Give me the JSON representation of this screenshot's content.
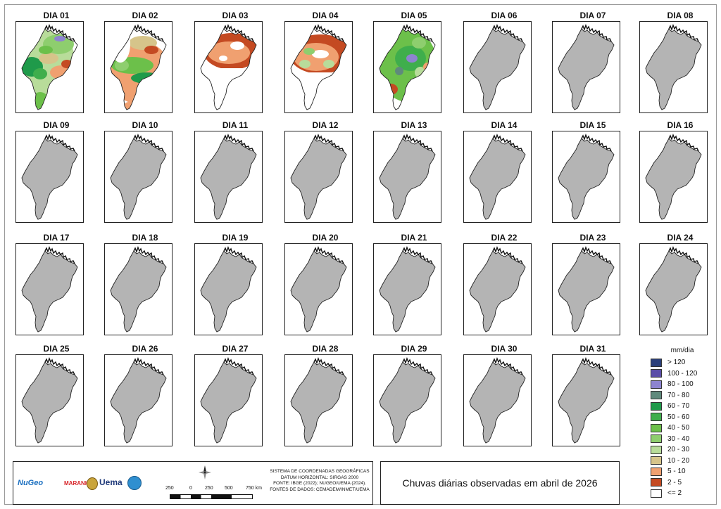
{
  "title": "Chuvas diárias observadas em abril de 2026",
  "days": [
    {
      "label": "DIA 01",
      "status": "data"
    },
    {
      "label": "DIA 02",
      "status": "data"
    },
    {
      "label": "DIA 03",
      "status": "data"
    },
    {
      "label": "DIA 04",
      "status": "data"
    },
    {
      "label": "DIA 05",
      "status": "data"
    },
    {
      "label": "DIA 06",
      "status": "no-data"
    },
    {
      "label": "DIA 07",
      "status": "no-data"
    },
    {
      "label": "DIA 08",
      "status": "no-data"
    },
    {
      "label": "DIA 09",
      "status": "no-data"
    },
    {
      "label": "DIA 10",
      "status": "no-data"
    },
    {
      "label": "DIA 11",
      "status": "no-data"
    },
    {
      "label": "DIA 12",
      "status": "no-data"
    },
    {
      "label": "DIA 13",
      "status": "no-data"
    },
    {
      "label": "DIA 14",
      "status": "no-data"
    },
    {
      "label": "DIA 15",
      "status": "no-data"
    },
    {
      "label": "DIA 16",
      "status": "no-data"
    },
    {
      "label": "DIA 17",
      "status": "no-data"
    },
    {
      "label": "DIA 18",
      "status": "no-data"
    },
    {
      "label": "DIA 19",
      "status": "no-data"
    },
    {
      "label": "DIA 20",
      "status": "no-data"
    },
    {
      "label": "DIA 21",
      "status": "no-data"
    },
    {
      "label": "DIA 22",
      "status": "no-data"
    },
    {
      "label": "DIA 23",
      "status": "no-data"
    },
    {
      "label": "DIA 24",
      "status": "no-data"
    },
    {
      "label": "DIA 25",
      "status": "no-data"
    },
    {
      "label": "DIA 26",
      "status": "no-data"
    },
    {
      "label": "DIA 27",
      "status": "no-data"
    },
    {
      "label": "DIA 28",
      "status": "no-data"
    },
    {
      "label": "DIA 29",
      "status": "no-data"
    },
    {
      "label": "DIA 30",
      "status": "no-data"
    },
    {
      "label": "DIA 31",
      "status": "no-data"
    }
  ],
  "legend": {
    "title": "mm/dia",
    "items": [
      {
        "label": "> 120",
        "color": "#2b3f7a"
      },
      {
        "label": "100 - 120",
        "color": "#5b4ea8"
      },
      {
        "label": "80 - 100",
        "color": "#8d84d0"
      },
      {
        "label": "70 - 80",
        "color": "#5f8a7c"
      },
      {
        "label": "60 - 70",
        "color": "#1f9a4a"
      },
      {
        "label": "50 - 60",
        "color": "#3fae4c"
      },
      {
        "label": "40 - 50",
        "color": "#6cc04a"
      },
      {
        "label": "30 - 40",
        "color": "#8ece6e"
      },
      {
        "label": "20 - 30",
        "color": "#b8dc9a"
      },
      {
        "label": "10 - 20",
        "color": "#d6c48a"
      },
      {
        "label": "5 - 10",
        "color": "#f0a070"
      },
      {
        "label": "2 - 5",
        "color": "#c44a22"
      },
      {
        "label": "<= 2",
        "color": "#ffffff"
      }
    ]
  },
  "no_data_color": "#b4b4b4",
  "info": {
    "datum_lines": [
      "SISTEMA DE COORDENADAS GEOGRÁFICAS",
      "DATUM HORIZONTAL: SIRGAS 2000",
      "FONTE: IBGE (2022); NUGEO/UEMA (2024).",
      "FONTES DE DADOS: CEMADEM/INMET/UEMA"
    ],
    "scale_labels": [
      "250",
      "0",
      "250",
      "500",
      "750 km"
    ],
    "logos": [
      "NuGeo",
      "MARANHÃO",
      "Uema",
      "LABMET"
    ]
  }
}
